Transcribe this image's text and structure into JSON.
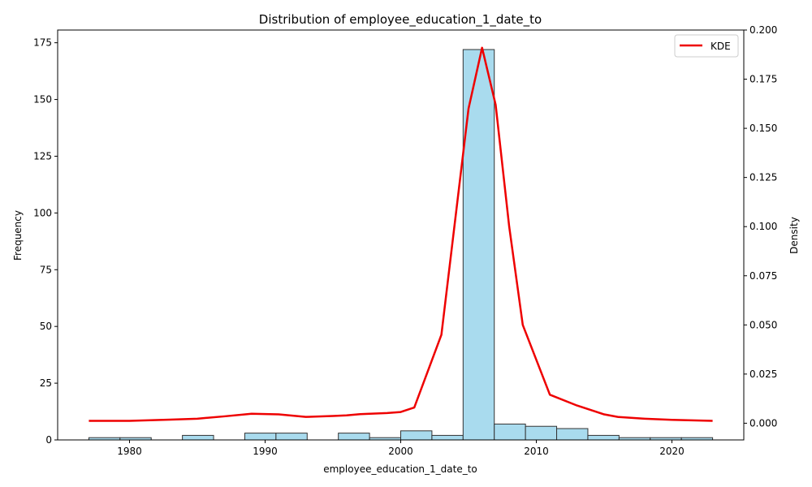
{
  "chart_data": {
    "type": "bar",
    "title": "Distribution of employee_education_1_date_to",
    "xlabel": "employee_education_1_date_to",
    "ylabel": "Frequency",
    "y2label": "Density",
    "xlim": [
      1974.7,
      2025.3
    ],
    "ylim": [
      0,
      180.6
    ],
    "y2lim": [
      -0.0085,
      0.2
    ],
    "xticks": [
      1980,
      1990,
      2000,
      2010,
      2020
    ],
    "yticks": [
      0,
      25,
      50,
      75,
      100,
      125,
      150,
      175
    ],
    "y2ticks": [
      "0.000",
      "0.025",
      "0.050",
      "0.075",
      "0.100",
      "0.125",
      "0.150",
      "0.175",
      "0.200"
    ],
    "histogram": {
      "bin_edges": [
        1977.0,
        1979.3,
        1981.6,
        1983.9,
        1986.2,
        1988.5,
        1990.8,
        1993.1,
        1995.4,
        1997.7,
        2000.0,
        2002.3,
        2004.6,
        2006.9,
        2009.2,
        2011.5,
        2013.8,
        2016.1,
        2018.4,
        2020.7,
        2023.0
      ],
      "counts": [
        1,
        1,
        0,
        2,
        0,
        3,
        3,
        0,
        3,
        1,
        4,
        2,
        172,
        7,
        6,
        5,
        2,
        1,
        1,
        1
      ],
      "color": "#a9dbee",
      "edge_color": "#333333"
    },
    "series": [
      {
        "name": "KDE",
        "color": "#ee0000",
        "x": [
          1977,
          1980,
          1983,
          1985,
          1987,
          1989,
          1991,
          1993,
          1995,
          1996,
          1997,
          1999,
          2000,
          2001,
          2003,
          2005,
          2006,
          2007,
          2008,
          2009,
          2011,
          2013,
          2015,
          2016,
          2018,
          2020,
          2023
        ],
        "y": [
          0.0012,
          0.0012,
          0.0018,
          0.0023,
          0.0035,
          0.0048,
          0.0045,
          0.0032,
          0.0037,
          0.004,
          0.0046,
          0.0052,
          0.0057,
          0.008,
          0.045,
          0.16,
          0.191,
          0.162,
          0.1,
          0.05,
          0.0145,
          0.009,
          0.0045,
          0.0032,
          0.0023,
          0.0017,
          0.0012
        ]
      }
    ],
    "legend_position": "top-right",
    "grid": false
  }
}
